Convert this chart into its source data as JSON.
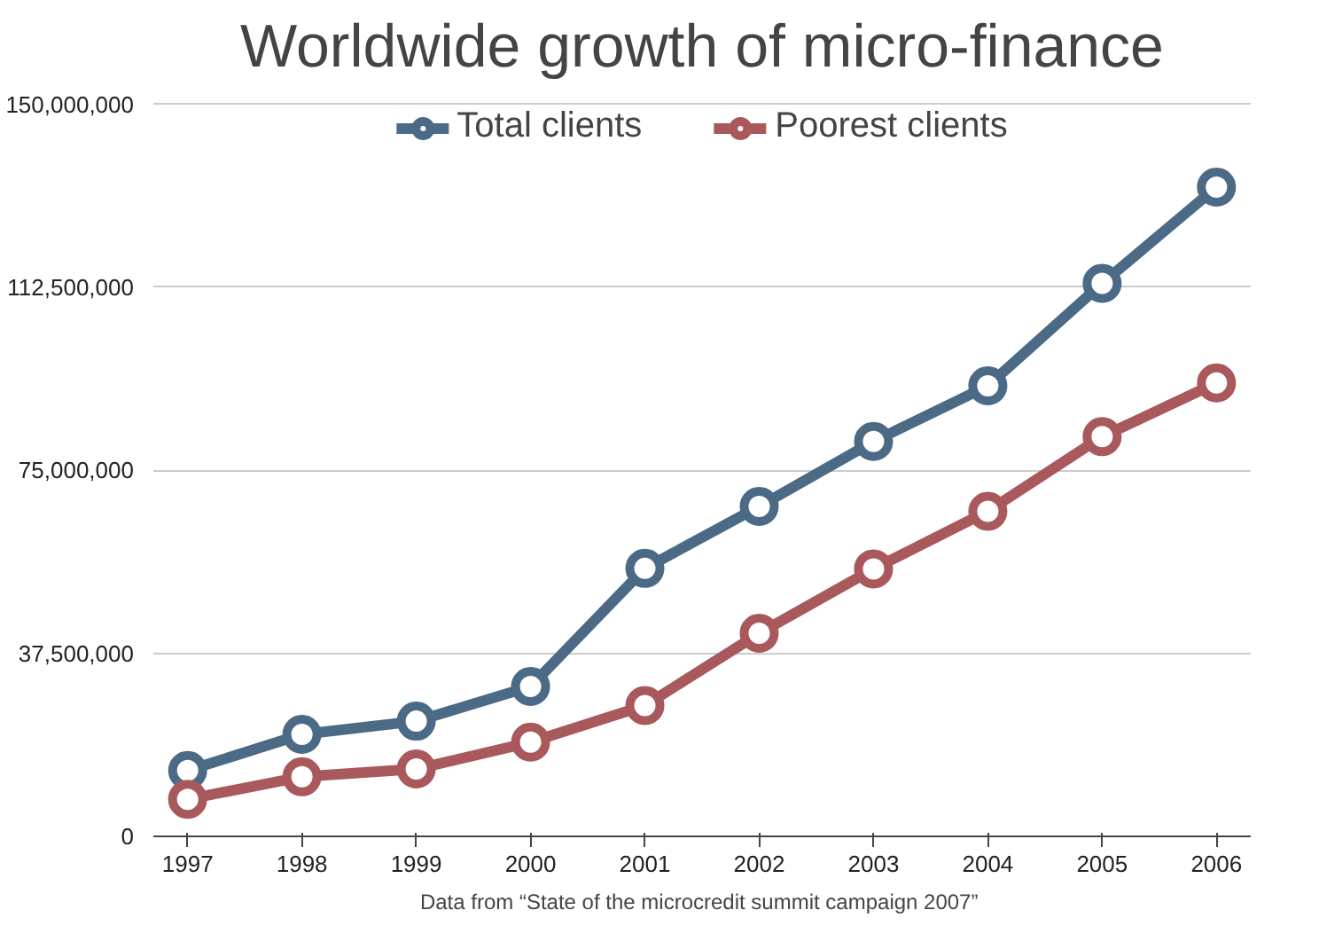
{
  "chart_data": {
    "type": "line",
    "title": "Worldwide growth of micro-finance",
    "x": [
      1997,
      1998,
      1999,
      2000,
      2001,
      2002,
      2003,
      2004,
      2005,
      2006
    ],
    "series": [
      {
        "name": "Total clients",
        "color": "#4b6a86",
        "values": [
          13500000.0,
          20900000.0,
          23600000.0,
          30700000.0,
          54900000.0,
          67600000.0,
          80900000.0,
          92300000.0,
          113300000.0,
          133000000.0
        ]
      },
      {
        "name": "Poorest clients",
        "color": "#a9585b",
        "values": [
          7600000.0,
          12200000.0,
          13800000.0,
          19300000.0,
          26800000.0,
          41600000.0,
          54800000.0,
          66600000.0,
          81900000.0,
          92900000.0
        ]
      }
    ],
    "xlim": [
      1996.7,
      2006.3
    ],
    "xticks": [
      1997,
      1998,
      1999,
      2000,
      2001,
      2002,
      2003,
      2004,
      2005,
      2006
    ],
    "ylim": [
      0,
      150000000
    ],
    "yticks": [
      {
        "value": 0,
        "label": "0"
      },
      {
        "value": 37500000,
        "label": "37,500,000"
      },
      {
        "value": 75000000,
        "label": "75,000,000"
      },
      {
        "value": 112500000,
        "label": "112,500,000"
      },
      {
        "value": 150000000,
        "label": "150,000,000"
      }
    ],
    "grid": "y",
    "legend": "top",
    "marker": "circle",
    "line_style": "solid",
    "annotations": [
      "Data from  “State of the microcredit summit campaign 2007”"
    ]
  }
}
